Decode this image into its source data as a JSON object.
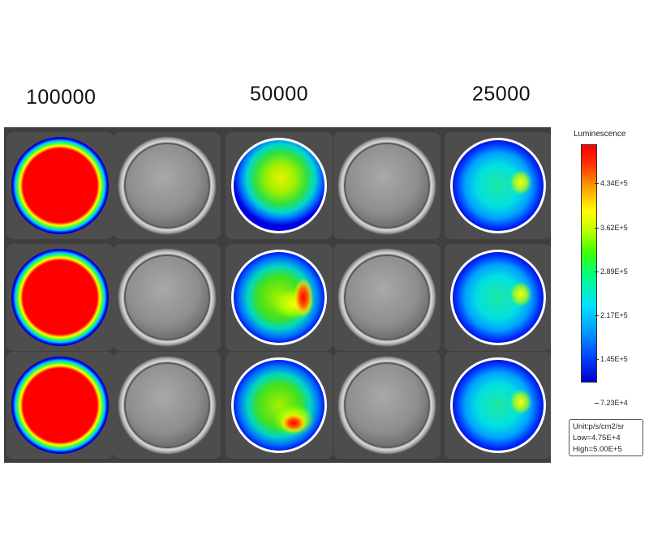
{
  "column_labels": [
    "100000",
    "50000",
    "25000"
  ],
  "colorbar": {
    "title": "Luminescence",
    "ticks": [
      "4.34E+5",
      "3.62E+5",
      "2.89E+5",
      "2.17E+5",
      "1.45E+5",
      "7.23E+4"
    ],
    "unit_line": "Unit:p/s/cm2/sr",
    "low_line": "Low=4.75E+4",
    "high_line": "High=5.00E+5"
  },
  "plate": {
    "rows": 3,
    "cols": 5,
    "wells": [
      [
        "saturated",
        "empty",
        "medium",
        "empty",
        "low"
      ],
      [
        "saturated",
        "empty",
        "medium-hot",
        "empty",
        "low"
      ],
      [
        "saturated",
        "empty",
        "medium-hot",
        "empty",
        "low"
      ]
    ]
  },
  "colors": {
    "saturated": "#ff0000",
    "ring_blue": "#0000e6",
    "plate_bg": "#3f3f3f",
    "empty_well": "#8a8a8a"
  }
}
